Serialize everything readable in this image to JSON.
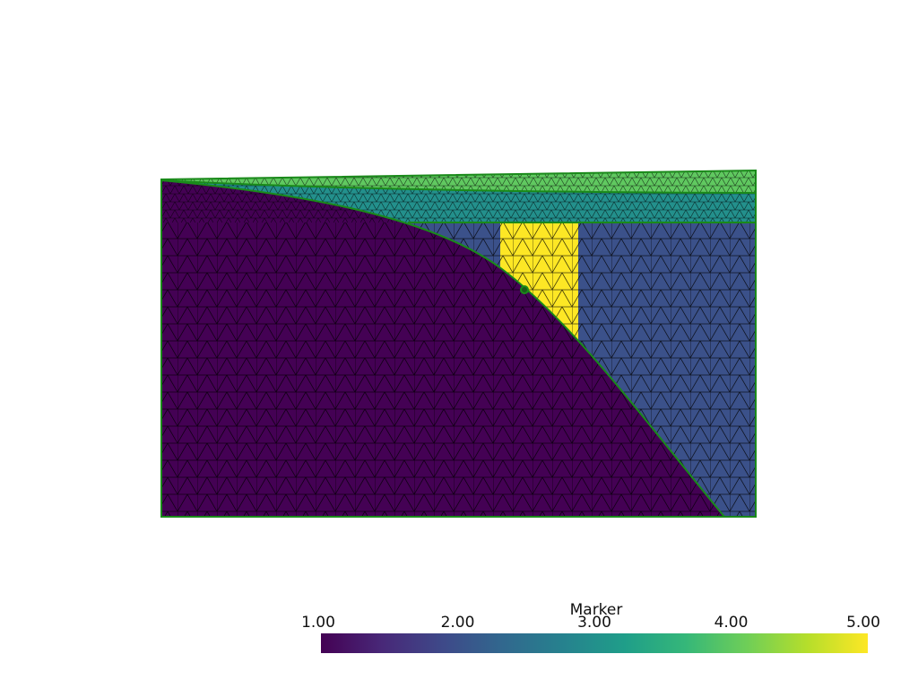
{
  "colorbar": {
    "title": "Marker",
    "clim": [
      1,
      5
    ],
    "ticks": [
      {
        "value": 1,
        "label": "1.00"
      },
      {
        "value": 2,
        "label": "2.00"
      },
      {
        "value": 3,
        "label": "3.00"
      },
      {
        "value": 4,
        "label": "4.00"
      },
      {
        "value": 5,
        "label": "5.00"
      }
    ],
    "colormap": [
      "#440154",
      "#482878",
      "#3e4989",
      "#31688e",
      "#26828e",
      "#1f9e89",
      "#35b779",
      "#6ece58",
      "#b5de2b",
      "#fde725"
    ]
  },
  "regions": [
    {
      "marker": 2
    },
    {
      "marker": 4
    },
    {
      "marker": 3
    },
    {
      "marker": 5
    },
    {
      "marker": 1
    }
  ]
}
